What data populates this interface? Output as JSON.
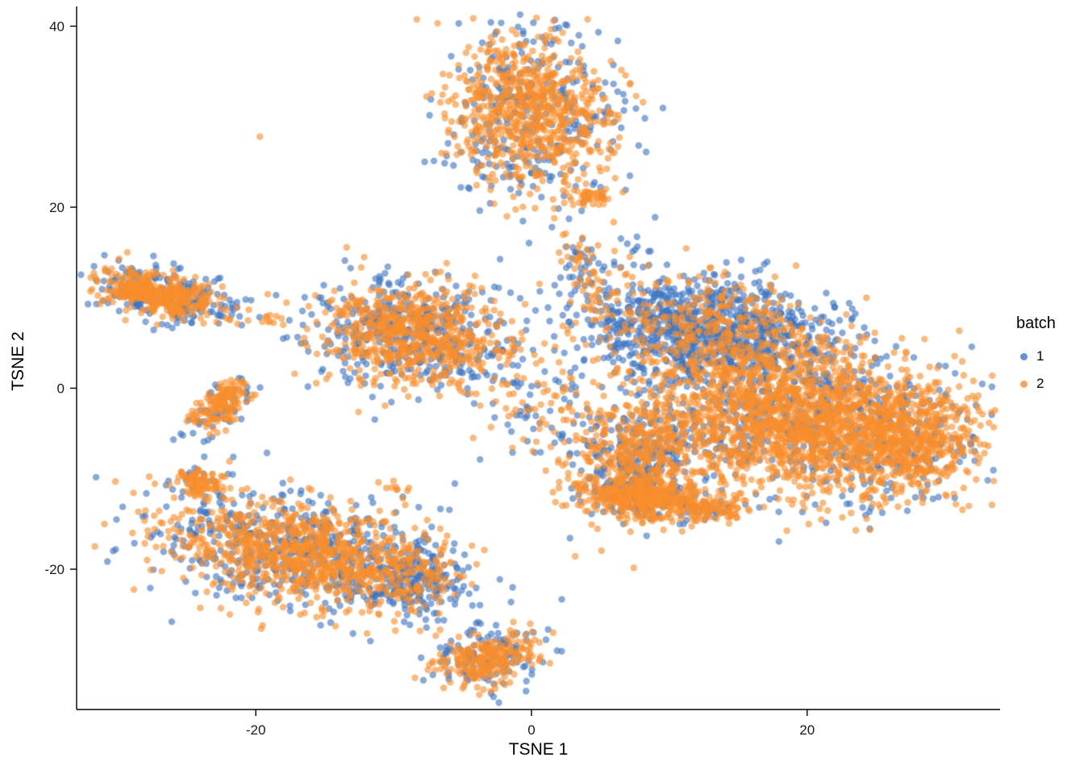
{
  "chart_data": {
    "type": "scatter",
    "title": "",
    "xlabel": "TSNE 1",
    "ylabel": "TSNE 2",
    "xlim": [
      -33,
      34
    ],
    "ylim": [
      -35.5,
      42
    ],
    "xticks": [
      -20,
      0,
      20
    ],
    "yticks": [
      -20,
      0,
      20,
      40
    ],
    "grid": false,
    "legend": {
      "title": "batch",
      "position": "right"
    },
    "series": [
      {
        "name": "1",
        "color": "#3D76C4"
      },
      {
        "name": "2",
        "color": "#F98E2C"
      }
    ],
    "point": {
      "radius": 4.2,
      "opacity": 0.62
    },
    "clusters": [
      {
        "name": "top-blob",
        "cx": 0.0,
        "cy": 30.5,
        "sx": 2.9,
        "sy": 4.2,
        "rot": 0,
        "n1": 320,
        "n2": 720,
        "s1": 1.18
      },
      {
        "name": "top-tail",
        "cx": 4.2,
        "cy": 21.2,
        "sx": 1.0,
        "sy": 0.55,
        "rot": 0.1,
        "n1": 6,
        "n2": 45,
        "s1": 1
      },
      {
        "name": "left-ridge",
        "cx": -27.0,
        "cy": 10.4,
        "sx": 2.4,
        "sy": 1.15,
        "rot": -0.3,
        "n1": 230,
        "n2": 400,
        "s1": 1.25
      },
      {
        "name": "left-dots",
        "cx": -18.8,
        "cy": 7.6,
        "sx": 0.45,
        "sy": 0.3,
        "rot": 0,
        "n1": 0,
        "n2": 8,
        "s1": 1
      },
      {
        "name": "left-small-diagonal",
        "cx": -22.6,
        "cy": -2.0,
        "sx": 0.7,
        "sy": 1.7,
        "rot": -0.5,
        "n1": 55,
        "n2": 140,
        "s1": 1.3
      },
      {
        "name": "center-blob",
        "cx": -8.6,
        "cy": 5.9,
        "sx": 3.3,
        "sy": 2.7,
        "rot": -0.25,
        "n1": 430,
        "n2": 650,
        "s1": 1.15
      },
      {
        "name": "center-sparse",
        "cx": 0.3,
        "cy": -1.5,
        "sx": 2.2,
        "sy": 3.5,
        "rot": 0,
        "n1": 45,
        "n2": 55,
        "s1": 1
      },
      {
        "name": "right-upper-tail",
        "cx": 3.7,
        "cy": 13.0,
        "sx": 0.8,
        "sy": 2.6,
        "rot": 0.1,
        "n1": 30,
        "n2": 50,
        "s1": 1
      },
      {
        "name": "right-upper-sparse",
        "cx": 6.8,
        "cy": 13.8,
        "sx": 1.4,
        "sy": 1.4,
        "rot": 0,
        "n1": 12,
        "n2": 6,
        "s1": 1
      },
      {
        "name": "right-blue-top",
        "cx": 12.5,
        "cy": 6.5,
        "sx": 4.5,
        "sy": 2.8,
        "rot": -0.15,
        "n1": 950,
        "n2": 380,
        "s1": 1
      },
      {
        "name": "right-main",
        "cx": 18.5,
        "cy": -3.5,
        "sx": 5.5,
        "sy": 4.0,
        "rot": -0.12,
        "n1": 520,
        "n2": 1600,
        "s1": 1.05
      },
      {
        "name": "right-far-east",
        "cx": 27.3,
        "cy": -5.5,
        "sx": 2.6,
        "sy": 3.0,
        "rot": 0,
        "n1": 130,
        "n2": 520,
        "s1": 1.25
      },
      {
        "name": "right-lower-left",
        "cx": 7.3,
        "cy": -8.0,
        "sx": 2.4,
        "sy": 3.2,
        "rot": 0,
        "n1": 260,
        "n2": 380,
        "s1": 1
      },
      {
        "name": "right-bottom-knob",
        "cx": 7.8,
        "cy": -12.0,
        "sx": 1.7,
        "sy": 1.2,
        "rot": 0,
        "n1": 50,
        "n2": 280,
        "s1": 1
      },
      {
        "name": "right-bottom-knob-2",
        "cx": 12.5,
        "cy": -13.2,
        "sx": 1.5,
        "sy": 0.9,
        "rot": 0,
        "n1": 30,
        "n2": 120,
        "s1": 1
      },
      {
        "name": "bottomleft-main",
        "cx": -16.5,
        "cy": -18.0,
        "sx": 5.0,
        "sy": 2.7,
        "rot": -0.3,
        "n1": 560,
        "n2": 900,
        "s1": 1.15
      },
      {
        "name": "bottomleft-blue-tip",
        "cx": -8.5,
        "cy": -21.5,
        "sx": 1.8,
        "sy": 1.8,
        "rot": 0,
        "n1": 180,
        "n2": 80,
        "s1": 1
      },
      {
        "name": "bottomleft-top-knob",
        "cx": -24.0,
        "cy": -10.5,
        "sx": 1.0,
        "sy": 0.8,
        "rot": -0.2,
        "n1": 20,
        "n2": 90,
        "s1": 1.3
      },
      {
        "name": "bottom-small-blob",
        "cx": -3.2,
        "cy": -29.8,
        "sx": 1.9,
        "sy": 1.4,
        "rot": 0.25,
        "n1": 130,
        "n2": 230,
        "s1": 1.2
      },
      {
        "name": "mid-orange-streak",
        "cx": -9.7,
        "cy": -11.3,
        "sx": 0.35,
        "sy": 0.6,
        "rot": 0.6,
        "n1": 1,
        "n2": 10,
        "s1": 1
      }
    ],
    "singletons": [
      {
        "x": -19.7,
        "y": 27.8,
        "batch": 2
      },
      {
        "x": 24.3,
        "y": 10.0,
        "batch": 2
      }
    ]
  }
}
